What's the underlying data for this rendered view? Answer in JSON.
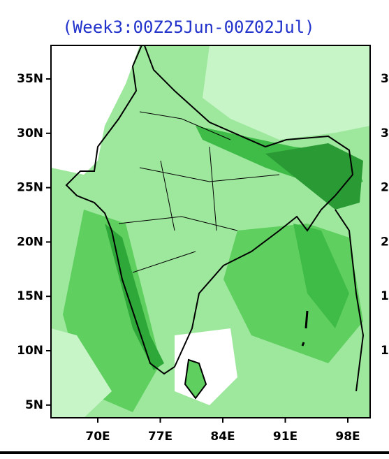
{
  "title": "(Week3:00Z25Jun-00Z02Jul)",
  "lat_labels": [
    "35N",
    "30N",
    "25N",
    "20N",
    "15N",
    "10N",
    "5N"
  ],
  "lon_labels": [
    "70E",
    "77E",
    "84E",
    "91E",
    "98E"
  ],
  "right_labels": [
    "3",
    "3",
    "2",
    "2",
    "1",
    "1"
  ]
}
